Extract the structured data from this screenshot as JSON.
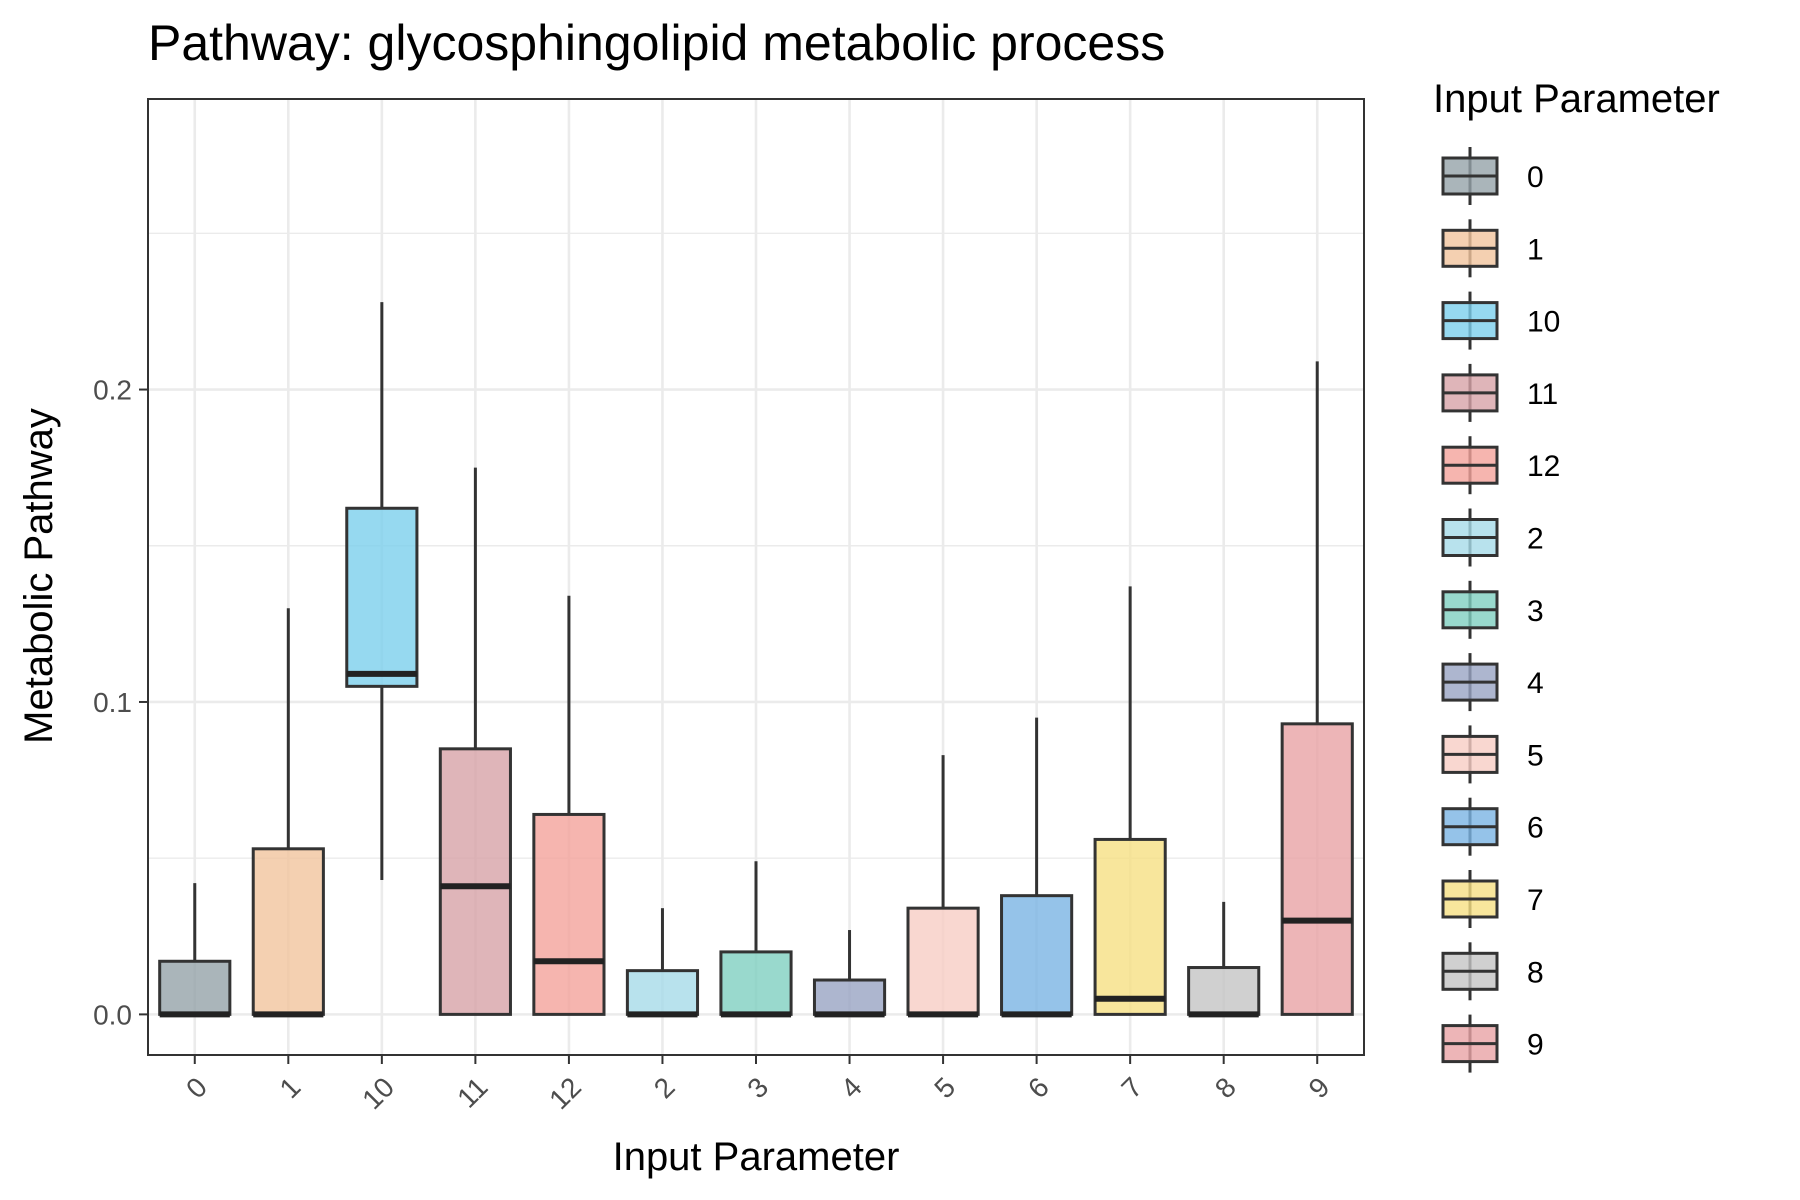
{
  "chart_data": {
    "type": "box",
    "title": "Pathway: glycosphingolipid metabolic process",
    "xlabel": "Input Parameter",
    "ylabel": "Metabolic Pathway",
    "ylim": [
      -0.013,
      0.293
    ],
    "yticks": [
      0.0,
      0.1,
      0.2
    ],
    "ytick_labels": [
      "0.0",
      "0.1",
      "0.2"
    ],
    "grid": true,
    "legend": {
      "title": "Input Parameter",
      "placement": "right"
    },
    "categories": [
      "0",
      "1",
      "10",
      "11",
      "12",
      "2",
      "3",
      "4",
      "5",
      "6",
      "7",
      "8",
      "9"
    ],
    "boxes": [
      {
        "category": "0",
        "whisker_low": 0.0,
        "q1": 0.0,
        "median": 0.0,
        "q3": 0.017,
        "whisker_high": 0.042,
        "color": "#95a3a9"
      },
      {
        "category": "1",
        "whisker_low": 0.0,
        "q1": 0.0,
        "median": 0.0,
        "q3": 0.053,
        "whisker_high": 0.13,
        "color": "#f1c49e"
      },
      {
        "category": "10",
        "whisker_low": 0.043,
        "q1": 0.105,
        "median": 0.109,
        "q3": 0.162,
        "whisker_high": 0.228,
        "color": "#7ccfec"
      },
      {
        "category": "11",
        "whisker_low": 0.0,
        "q1": 0.0,
        "median": 0.041,
        "q3": 0.085,
        "whisker_high": 0.175,
        "color": "#d7a2a8"
      },
      {
        "category": "12",
        "whisker_low": 0.0,
        "q1": 0.0,
        "median": 0.017,
        "q3": 0.064,
        "whisker_high": 0.134,
        "color": "#f4a39b"
      },
      {
        "category": "2",
        "whisker_low": 0.0,
        "q1": 0.0,
        "median": 0.0,
        "q3": 0.014,
        "whisker_high": 0.034,
        "color": "#a6dbe9"
      },
      {
        "category": "3",
        "whisker_low": 0.0,
        "q1": 0.0,
        "median": 0.0,
        "q3": 0.02,
        "whisker_high": 0.049,
        "color": "#7fd0c1"
      },
      {
        "category": "4",
        "whisker_low": 0.0,
        "q1": 0.0,
        "median": 0.0,
        "q3": 0.011,
        "whisker_high": 0.027,
        "color": "#98a4c3"
      },
      {
        "category": "5",
        "whisker_low": 0.0,
        "q1": 0.0,
        "median": 0.0,
        "q3": 0.034,
        "whisker_high": 0.083,
        "color": "#f8cdc4"
      },
      {
        "category": "6",
        "whisker_low": 0.0,
        "q1": 0.0,
        "median": 0.0,
        "q3": 0.038,
        "whisker_high": 0.095,
        "color": "#7bb4e3"
      },
      {
        "category": "7",
        "whisker_low": 0.0,
        "q1": 0.0,
        "median": 0.005,
        "q3": 0.056,
        "whisker_high": 0.137,
        "color": "#f6e083"
      },
      {
        "category": "8",
        "whisker_low": 0.0,
        "q1": 0.0,
        "median": 0.0,
        "q3": 0.015,
        "whisker_high": 0.036,
        "color": "#c4c4c4"
      },
      {
        "category": "9",
        "whisker_low": 0.0,
        "q1": 0.0,
        "median": 0.03,
        "q3": 0.093,
        "whisker_high": 0.209,
        "color": "#e8a3a5"
      }
    ]
  }
}
